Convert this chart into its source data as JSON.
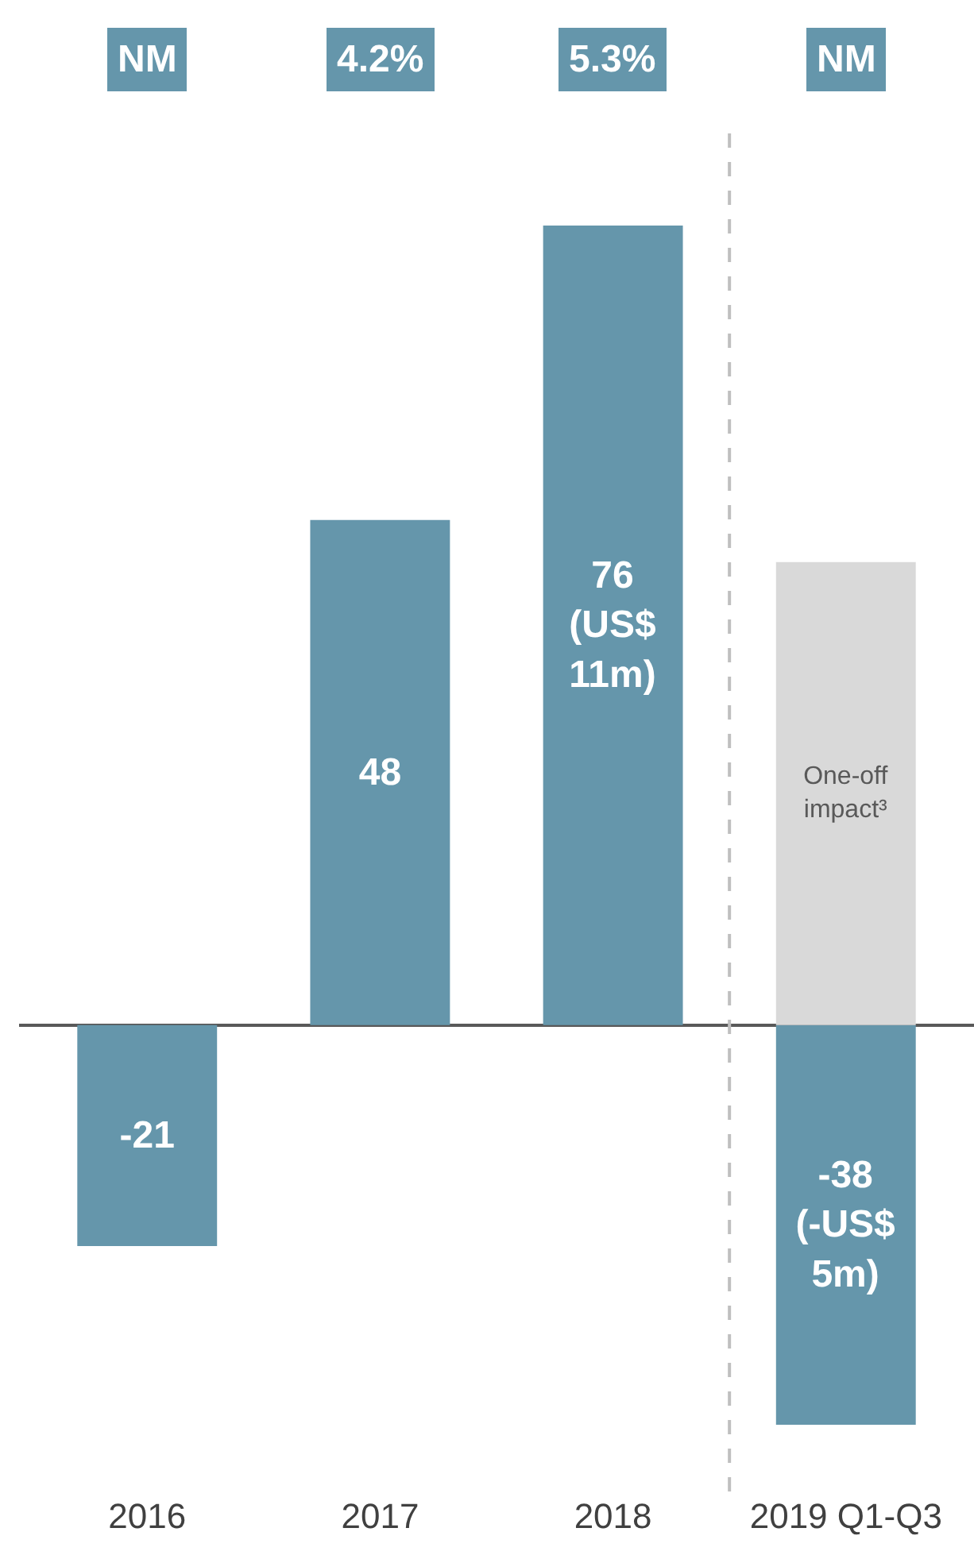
{
  "chart_data": {
    "type": "bar",
    "stacked": true,
    "categories": [
      "2016",
      "2017",
      "2018",
      "2019 Q1-Q3"
    ],
    "series": [
      {
        "color": "#6596ab",
        "values": [
          -21,
          48,
          76,
          -38
        ],
        "value_labels": [
          "-21",
          "48",
          "76 (US$ 11m)",
          "-38 (-US$ 5m)"
        ]
      },
      {
        "name": "One-off impact³",
        "color": "#d9d9d9",
        "values": [
          null,
          null,
          null,
          44
        ]
      }
    ],
    "tick_labels": "x",
    "grid": false,
    "legend": false,
    "annotations": [
      "NM",
      "4.2%",
      "5.3%",
      "NM"
    ]
  }
}
